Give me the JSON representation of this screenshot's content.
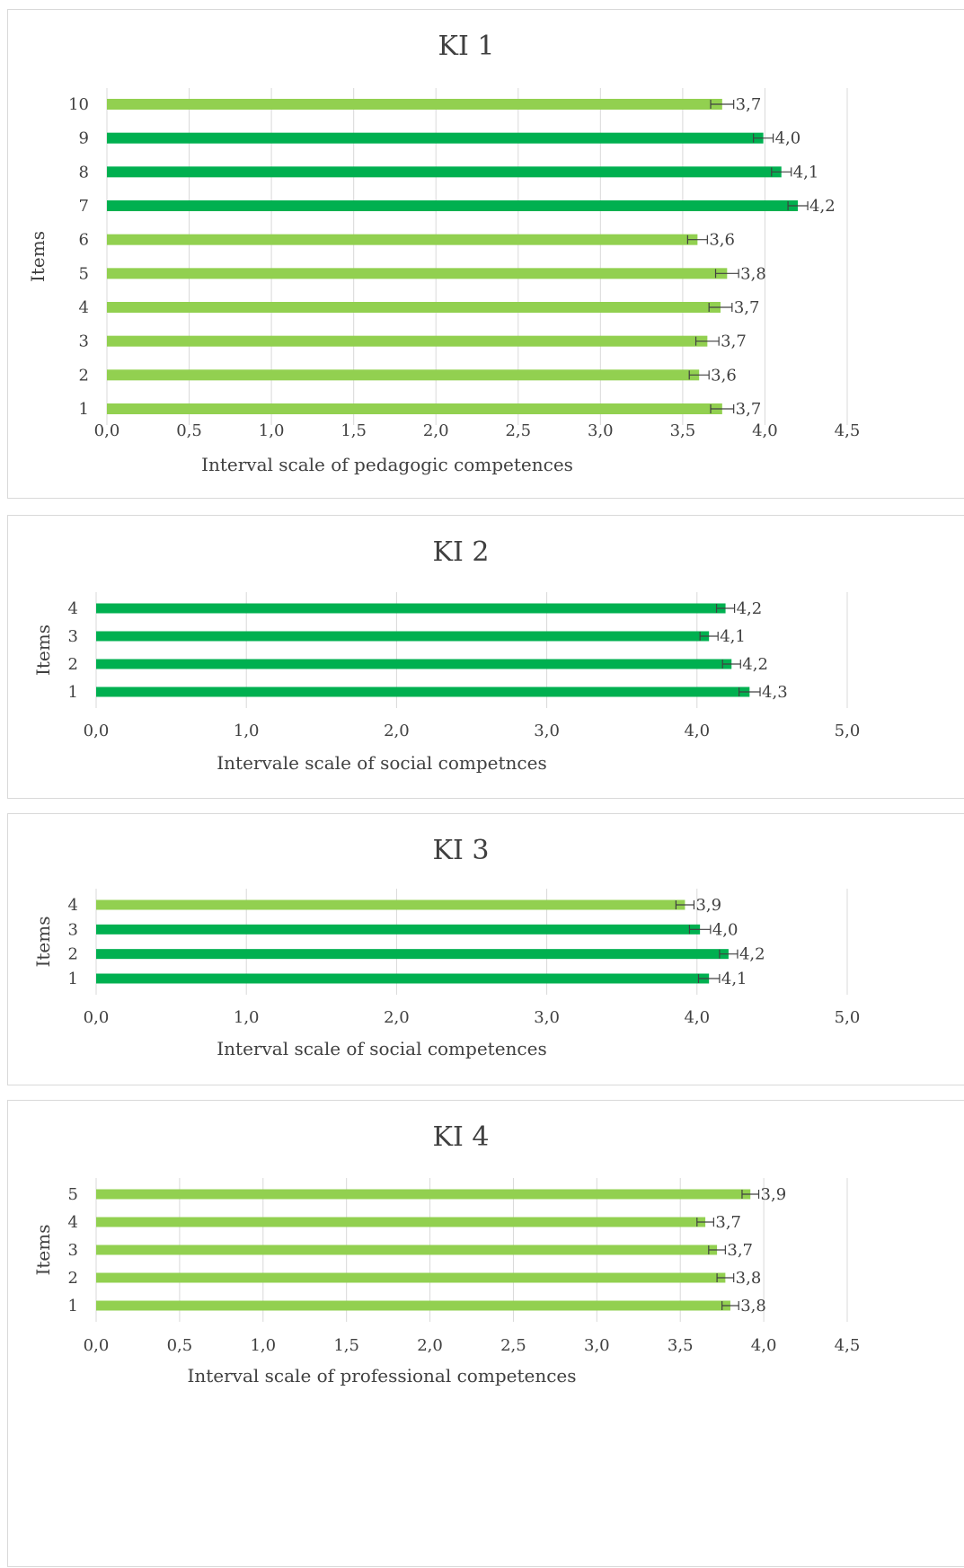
{
  "colors": {
    "light": "#92d050",
    "dark": "#00b050",
    "grid": "#d9d9d9",
    "err": "#404040"
  },
  "chart_data": [
    {
      "type": "bar",
      "orientation": "horizontal",
      "title": "KI 1",
      "xlabel": "Interval scale of pedagogic competences",
      "ylabel": "Items",
      "xlim": [
        0,
        4.5
      ],
      "x_ticks": [
        0,
        0.5,
        1.0,
        1.5,
        2.0,
        2.5,
        3.0,
        3.5,
        4.0,
        4.5
      ],
      "x_tick_labels": [
        "0,0",
        "0,5",
        "1,0",
        "1,5",
        "2,0",
        "2,5",
        "3,0",
        "3,5",
        "4,0",
        "4,5"
      ],
      "categories": [
        "1",
        "2",
        "3",
        "4",
        "5",
        "6",
        "7",
        "8",
        "9",
        "10"
      ],
      "values": [
        3.74,
        3.6,
        3.65,
        3.73,
        3.77,
        3.59,
        4.2,
        4.1,
        3.99,
        3.74
      ],
      "value_labels": [
        "3,7",
        "3,6",
        "3,7",
        "3,7",
        "3,8",
        "3,6",
        "4,2",
        "4,1",
        "4,0",
        "3,7"
      ],
      "errors": [
        0.07,
        0.06,
        0.07,
        0.07,
        0.07,
        0.06,
        0.06,
        0.06,
        0.06,
        0.07
      ],
      "bar_colors": [
        "light",
        "light",
        "light",
        "light",
        "light",
        "light",
        "dark",
        "dark",
        "dark",
        "light"
      ],
      "grid": true
    },
    {
      "type": "bar",
      "orientation": "horizontal",
      "title": "KI 2",
      "xlabel": "Intervale scale of social competnces",
      "ylabel": "Items",
      "xlim": [
        0,
        5
      ],
      "x_ticks": [
        0,
        1,
        2,
        3,
        4,
        5
      ],
      "x_tick_labels": [
        "0,0",
        "1,0",
        "2,0",
        "3,0",
        "4,0",
        "5,0"
      ],
      "categories": [
        "1",
        "2",
        "3",
        "4"
      ],
      "values": [
        4.35,
        4.23,
        4.08,
        4.19
      ],
      "value_labels": [
        "4,3",
        "4,2",
        "4,1",
        "4,2"
      ],
      "errors": [
        0.07,
        0.06,
        0.06,
        0.06
      ],
      "bar_colors": [
        "dark",
        "dark",
        "dark",
        "dark"
      ],
      "grid": true
    },
    {
      "type": "bar",
      "orientation": "horizontal",
      "title": "KI 3",
      "xlabel": "Interval scale of social competences",
      "ylabel": "Items",
      "xlim": [
        0,
        5
      ],
      "x_ticks": [
        0,
        1,
        2,
        3,
        4,
        5
      ],
      "x_tick_labels": [
        "0,0",
        "1,0",
        "2,0",
        "3,0",
        "4,0",
        "5,0"
      ],
      "categories": [
        "1",
        "2",
        "3",
        "4"
      ],
      "values": [
        4.08,
        4.21,
        4.02,
        3.92
      ],
      "value_labels": [
        "4,1",
        "4,2",
        "4,0",
        "3,9"
      ],
      "errors": [
        0.07,
        0.06,
        0.07,
        0.06
      ],
      "bar_colors": [
        "dark",
        "dark",
        "dark",
        "light"
      ],
      "grid": true
    },
    {
      "type": "bar",
      "orientation": "horizontal",
      "title": "KI 4",
      "xlabel": "Interval scale of professional competences",
      "ylabel": "Items",
      "xlim": [
        0,
        4.5
      ],
      "x_ticks": [
        0,
        0.5,
        1.0,
        1.5,
        2.0,
        2.5,
        3.0,
        3.5,
        4.0,
        4.5
      ],
      "x_tick_labels": [
        "0,0",
        "0,5",
        "1,0",
        "1,5",
        "2,0",
        "2,5",
        "3,0",
        "3,5",
        "4,0",
        "4,5"
      ],
      "categories": [
        "1",
        "2",
        "3",
        "4",
        "5"
      ],
      "values": [
        3.8,
        3.77,
        3.72,
        3.65,
        3.92
      ],
      "value_labels": [
        "3,8",
        "3,8",
        "3,7",
        "3,7",
        "3,9"
      ],
      "errors": [
        0.05,
        0.05,
        0.05,
        0.05,
        0.05
      ],
      "bar_colors": [
        "light",
        "light",
        "light",
        "light",
        "light"
      ],
      "grid": true
    }
  ]
}
